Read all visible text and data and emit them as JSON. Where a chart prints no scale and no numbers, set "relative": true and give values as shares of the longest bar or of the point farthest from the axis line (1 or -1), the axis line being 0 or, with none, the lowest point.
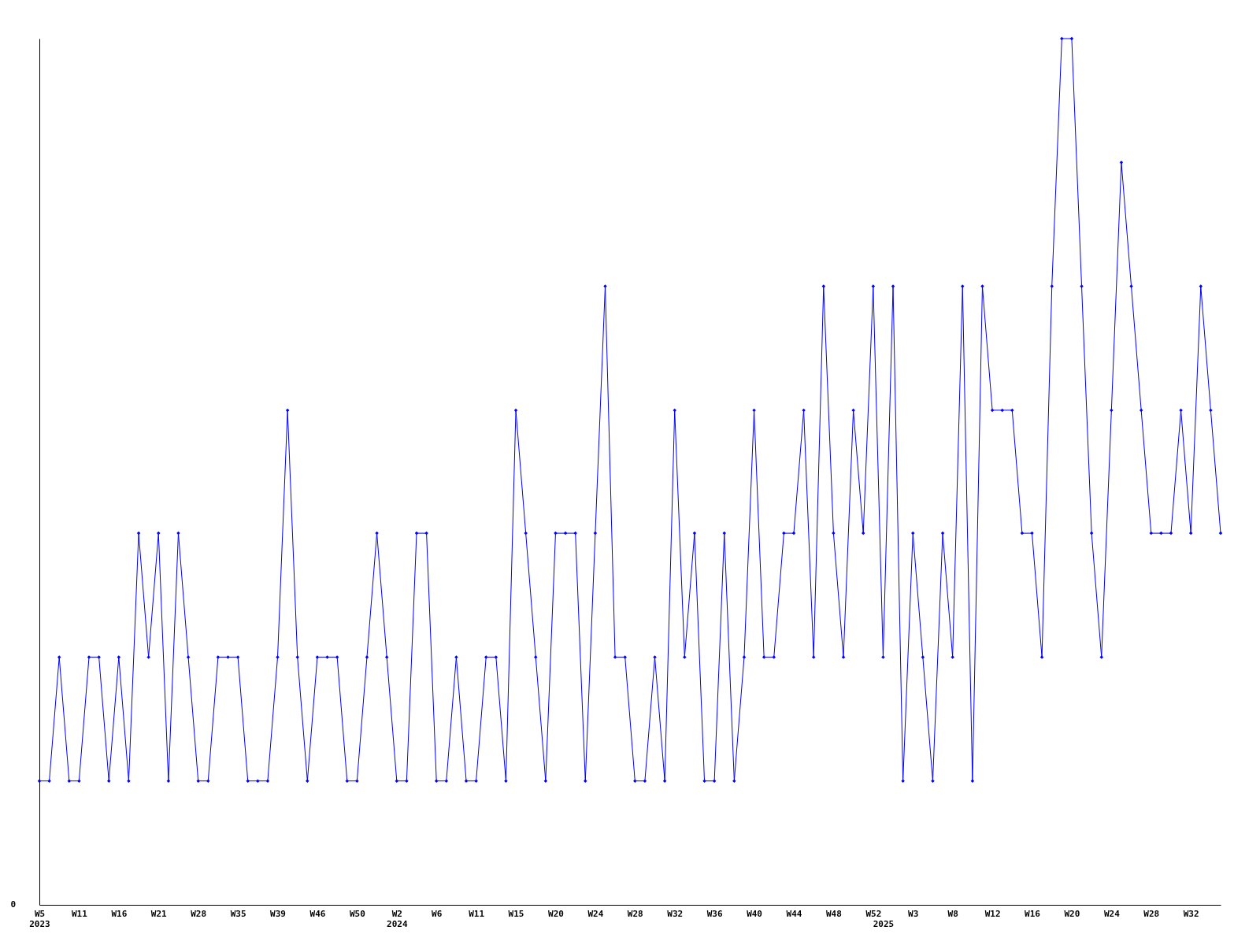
{
  "chart_data": {
    "type": "line",
    "relative": true,
    "marker": "diamond",
    "grid": false,
    "annotations": [
      "0"
    ],
    "categories": [
      "W5\n2023",
      null,
      null,
      null,
      "W11",
      null,
      null,
      null,
      "W16",
      null,
      null,
      null,
      "W21",
      null,
      null,
      null,
      "W28",
      null,
      null,
      null,
      "W35",
      null,
      null,
      null,
      "W39",
      null,
      null,
      null,
      "W46",
      null,
      null,
      null,
      "W50",
      null,
      null,
      null,
      "W2\n2024",
      null,
      null,
      null,
      "W6",
      null,
      null,
      null,
      "W11",
      null,
      null,
      null,
      "W15",
      null,
      null,
      null,
      "W20",
      null,
      null,
      null,
      "W24",
      null,
      null,
      null,
      "W28",
      null,
      null,
      null,
      "W32",
      null,
      null,
      null,
      "W36",
      null,
      null,
      null,
      "W40",
      null,
      null,
      null,
      "W44",
      null,
      null,
      null,
      "W48",
      null,
      null,
      null,
      "W52",
      "\n2025",
      null,
      null,
      "W3",
      null,
      null,
      null,
      "W8",
      null,
      null,
      null,
      "W12",
      null,
      null,
      null,
      "W16",
      null,
      null,
      null,
      "W20",
      null,
      null,
      null,
      "W24",
      null,
      null,
      null,
      "W28",
      null,
      null,
      null,
      "W32",
      null,
      null,
      null
    ],
    "series": [
      {
        "color": "#0000ff",
        "values": [
          0.143,
          0.143,
          0.286,
          0.143,
          0.143,
          0.286,
          0.286,
          0.143,
          0.286,
          0.143,
          0.429,
          0.286,
          0.429,
          0.143,
          0.429,
          0.286,
          0.143,
          0.143,
          0.286,
          0.286,
          0.286,
          0.143,
          0.143,
          0.143,
          0.286,
          0.571,
          0.286,
          0.143,
          0.286,
          0.286,
          0.286,
          0.143,
          0.143,
          0.286,
          0.429,
          0.286,
          0.143,
          0.143,
          0.429,
          0.429,
          0.143,
          0.143,
          0.286,
          0.143,
          0.143,
          0.286,
          0.286,
          0.143,
          0.571,
          0.429,
          0.286,
          0.143,
          0.429,
          0.429,
          0.429,
          0.143,
          0.429,
          0.714,
          0.286,
          0.286,
          0.143,
          0.143,
          0.286,
          0.143,
          0.571,
          0.286,
          0.429,
          0.143,
          0.143,
          0.429,
          0.143,
          0.286,
          0.571,
          0.286,
          0.286,
          0.429,
          0.429,
          0.571,
          0.286,
          0.714,
          0.429,
          0.286,
          0.571,
          0.429,
          0.714,
          0.286,
          0.714,
          0.143,
          0.429,
          0.286,
          0.143,
          0.429,
          0.286,
          0.714,
          0.143,
          0.714,
          0.571,
          0.571,
          0.571,
          0.429,
          0.429,
          0.286,
          0.714,
          1,
          1,
          0.714,
          0.429,
          0.286,
          0.571,
          0.857,
          0.714,
          0.571,
          0.429,
          0.429,
          0.429,
          0.571,
          0.429,
          0.714,
          0.571,
          0.429
        ]
      }
    ]
  }
}
